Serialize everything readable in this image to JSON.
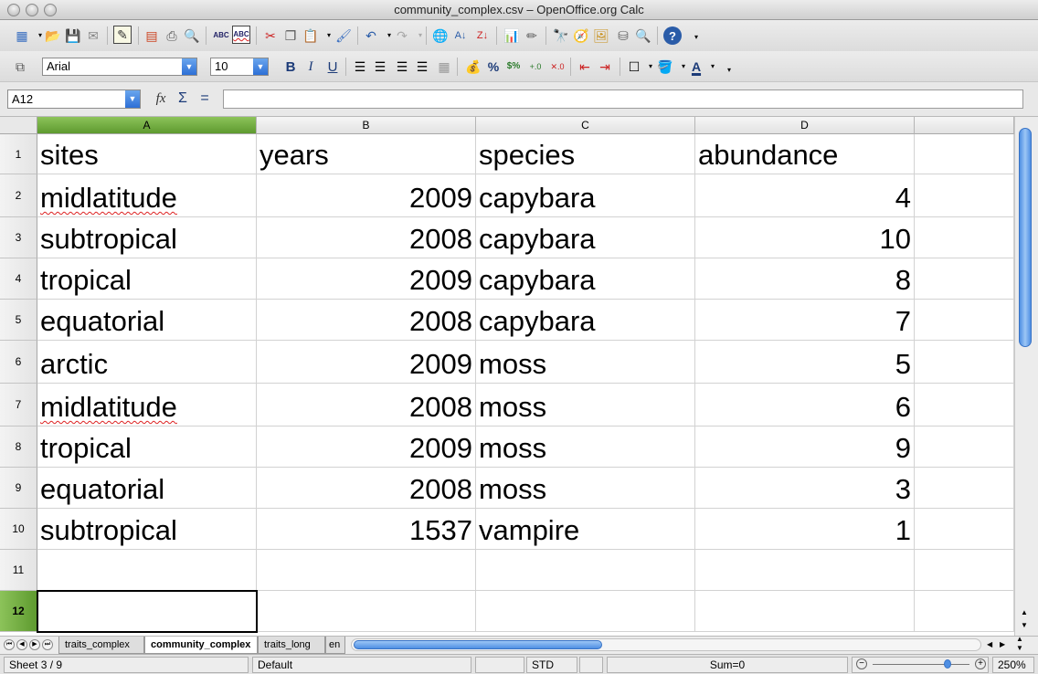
{
  "window": {
    "title": "community_complex.csv – OpenOffice.org Calc"
  },
  "toolbar": {
    "font_name": "Arial",
    "font_size": "10",
    "bold": "B",
    "italic": "I",
    "underline": "U",
    "percent": "%",
    "percent_dollar": "$%",
    "spell_abc": "ABC",
    "autospell_abc": "ABC"
  },
  "formula_bar": {
    "cell_ref": "A12",
    "function_wizard": "fx",
    "sum": "Σ",
    "equals": "=",
    "content": ""
  },
  "grid": {
    "columns": [
      "A",
      "B",
      "C",
      "D"
    ],
    "row_numbers": [
      "1",
      "2",
      "3",
      "4",
      "5",
      "6",
      "7",
      "8",
      "9",
      "10",
      "11",
      "12"
    ],
    "header": [
      "sites",
      "years",
      "species",
      "abundance"
    ],
    "rows": [
      [
        "midlatitude",
        "2009",
        "capybara",
        "4"
      ],
      [
        "subtropical",
        "2008",
        "capybara",
        "10"
      ],
      [
        "tropical",
        "2009",
        "capybara",
        "8"
      ],
      [
        "equatorial",
        "2008",
        "capybara",
        "7"
      ],
      [
        "arctic",
        "2009",
        "moss",
        "5"
      ],
      [
        "midlatitude",
        "2008",
        "moss",
        "6"
      ],
      [
        "tropical",
        "2009",
        "moss",
        "9"
      ],
      [
        "equatorial",
        "2008",
        "moss",
        "3"
      ],
      [
        "subtropical",
        "1537",
        "vampire",
        "1"
      ]
    ],
    "selected_cell": "A12",
    "selection_color": "#6fae3c"
  },
  "sheet_tabs": [
    "traits_complex",
    "community_complex",
    "traits_long",
    "en"
  ],
  "active_sheet": "community_complex",
  "status": {
    "sheet": "Sheet 3 / 9",
    "page_style": "Default",
    "mode": "STD",
    "sum": "Sum=0",
    "zoom": "250%"
  }
}
